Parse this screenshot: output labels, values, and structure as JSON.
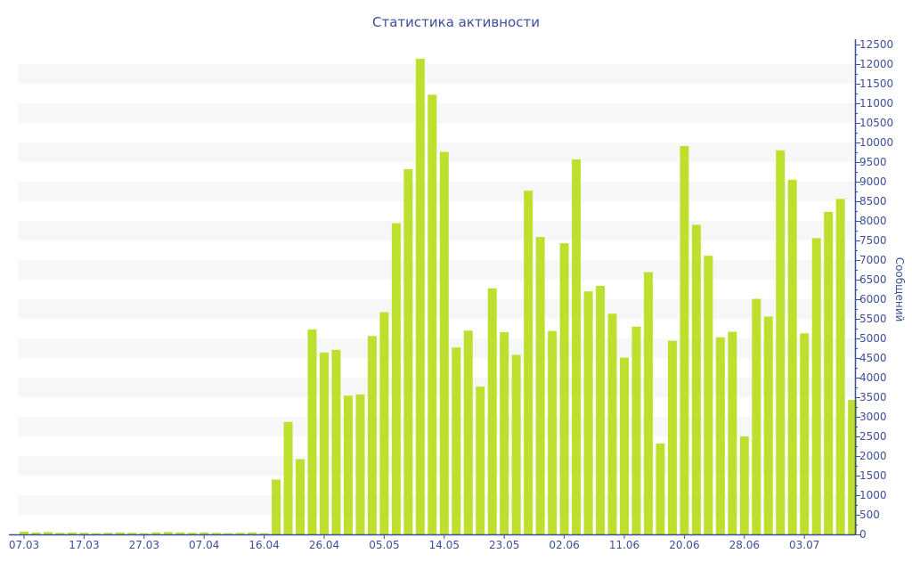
{
  "chart_data": {
    "type": "bar",
    "title": "Статистика активности",
    "xlabel": "",
    "ylabel": "Сообщений",
    "ylim": [
      0,
      12500
    ],
    "ytick_step": 500,
    "y_axis_position": "right",
    "grid": "alternating horizontal bands",
    "bar_color": "#bde02f",
    "axis_color": "#3d4f9a",
    "x_tick_labels": [
      "07.03",
      "17.03",
      "27.03",
      "07.04",
      "16.04",
      "26.04",
      "05.05",
      "14.05",
      "23.05",
      "02.06",
      "11.06",
      "20.06",
      "28.06",
      "03.07"
    ],
    "x_tick_every": 5,
    "values": [
      70,
      50,
      60,
      40,
      50,
      40,
      30,
      40,
      50,
      40,
      30,
      50,
      60,
      50,
      40,
      50,
      40,
      30,
      40,
      50,
      30,
      1400,
      2870,
      1920,
      5230,
      4640,
      4710,
      3540,
      3570,
      5060,
      5670,
      7940,
      9320,
      12140,
      11220,
      9760,
      4770,
      5200,
      3770,
      6280,
      5160,
      4580,
      8770,
      7590,
      5190,
      7430,
      9570,
      6200,
      6340,
      5630,
      4510,
      5300,
      6690,
      2320,
      4940,
      9910,
      7900,
      7110,
      5030,
      5170,
      2500,
      6010,
      5560,
      9800,
      9050,
      5130,
      7560,
      8230,
      8560,
      3430
    ]
  }
}
